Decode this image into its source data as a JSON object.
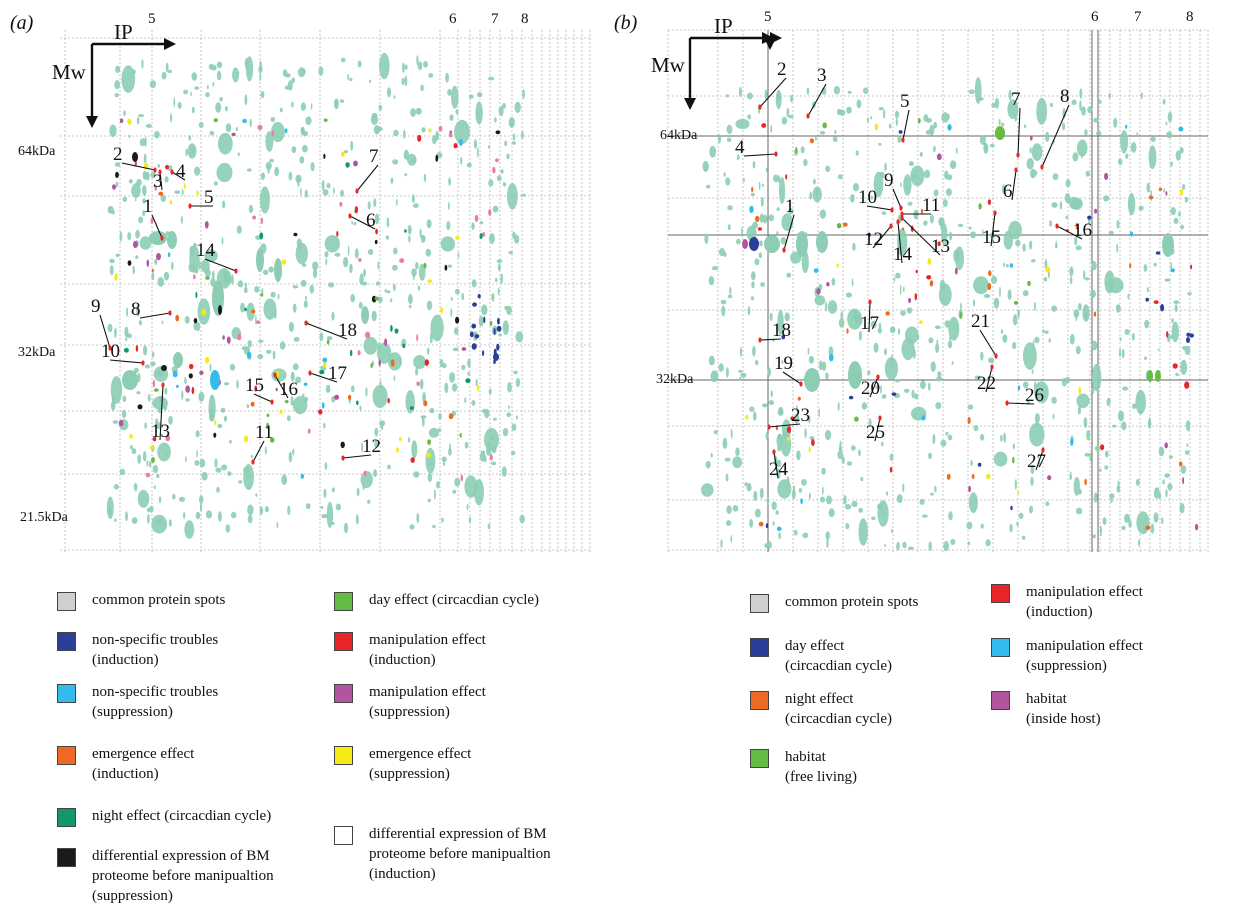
{
  "panel_a": {
    "letter": "(a)",
    "ip_label": "IP",
    "mw_label": "Mw",
    "ip_ticks": [
      "5",
      "6",
      "7",
      "8"
    ],
    "mw_ticks": [
      "64kDa",
      "32kDa",
      "21.5kDa"
    ],
    "spot_numbers": [
      "1",
      "2",
      "3",
      "4",
      "5",
      "6",
      "7",
      "8",
      "9",
      "10",
      "11",
      "12",
      "13",
      "14",
      "15",
      "16",
      "17",
      "18"
    ],
    "legend": [
      {
        "label": "common protein spots",
        "color": "#cfcfcf"
      },
      {
        "label": "day effect (circacdian cycle)",
        "color": "#66bb44"
      },
      {
        "label": "non-specific troubles\n(induction)",
        "color": "#2b3f99"
      },
      {
        "label": "manipulation effect\n(induction)",
        "color": "#e8262a"
      },
      {
        "label": "non-specific troubles\n(suppression)",
        "color": "#33bbee"
      },
      {
        "label": "manipulation effect\n(suppression)",
        "color": "#b3559e"
      },
      {
        "label": "emergence effect\n(induction)",
        "color": "#ee6a22"
      },
      {
        "label": "emergence effect\n(suppression)",
        "color": "#f5ea14"
      },
      {
        "label": "night effect (circacdian cycle)",
        "color": "#11996a"
      },
      {
        "label": "differential expression of BM\nproteome before manipualtion\n(induction)",
        "color": "#ffffff"
      },
      {
        "label": "differential expression of BM\nproteome before manipualtion\n(suppression)",
        "color": "#1a1a1a"
      }
    ]
  },
  "panel_b": {
    "letter": "(b)",
    "ip_label": "IP",
    "mw_label": "Mw",
    "ip_ticks": [
      "5",
      "6",
      "7",
      "8"
    ],
    "mw_ticks": [
      "64kDa",
      "32kDa"
    ],
    "spot_numbers": [
      "1",
      "2",
      "3",
      "4",
      "5",
      "6",
      "7",
      "8",
      "9",
      "10",
      "11",
      "12",
      "13",
      "14",
      "15",
      "16",
      "17",
      "18",
      "19",
      "20",
      "21",
      "22",
      "23",
      "24",
      "25",
      "26",
      "27"
    ],
    "legend": [
      {
        "label": "common protein spots",
        "color": "#cfcfcf"
      },
      {
        "label": "manipulation effect\n(induction)",
        "color": "#e8262a"
      },
      {
        "label": "day effect\n(circacdian cycle)",
        "color": "#2b3f99"
      },
      {
        "label": "manipulation effect\n(suppression)",
        "color": "#33bbee"
      },
      {
        "label": "night effect\n(circacdian cycle)",
        "color": "#ee6a22"
      },
      {
        "label": "habitat\n(inside host)",
        "color": "#b3559e"
      },
      {
        "label": "habitat\n(free living)",
        "color": "#66bb44"
      }
    ]
  }
}
